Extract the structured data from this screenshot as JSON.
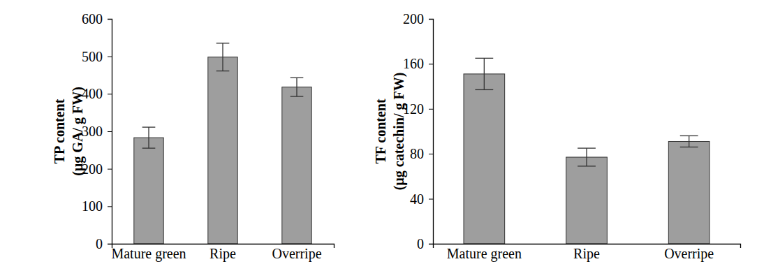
{
  "chart_data": [
    {
      "type": "bar",
      "ylabel": [
        "TP content",
        "(µg GA/ g FW)"
      ],
      "categories": [
        "Mature green",
        "Ripe",
        "Overripe"
      ],
      "values": [
        283,
        498,
        418
      ],
      "errors": [
        28,
        37,
        25
      ],
      "color": "#9e9e9e",
      "ylim": [
        0,
        600
      ],
      "yticks": [
        0,
        100,
        200,
        300,
        400,
        500,
        600
      ]
    },
    {
      "type": "bar",
      "ylabel": [
        "TF content",
        "(µg catechin/ g FW)"
      ],
      "categories": [
        "Mature green",
        "Ripe",
        "Overripe"
      ],
      "values": [
        151,
        77,
        91
      ],
      "errors": [
        14,
        8,
        5
      ],
      "color": "#9e9e9e",
      "ylim": [
        0,
        200
      ],
      "yticks": [
        0,
        40,
        80,
        120,
        160,
        200
      ]
    }
  ]
}
